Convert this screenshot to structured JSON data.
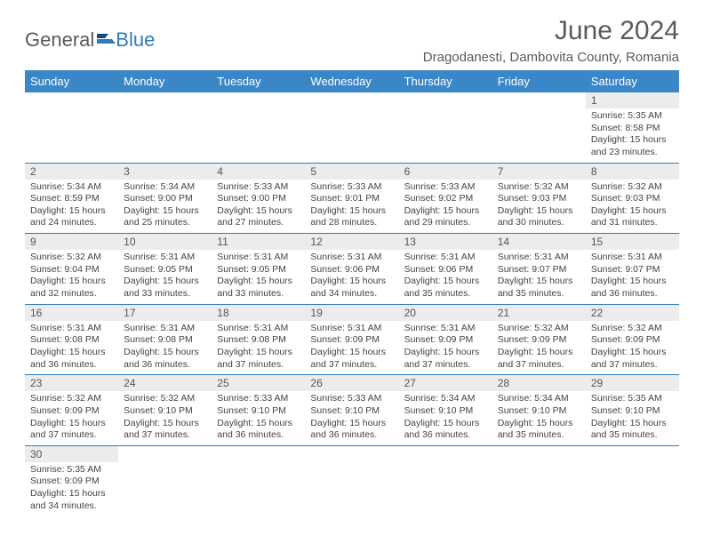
{
  "logo": {
    "word1": "General",
    "word2": "Blue"
  },
  "title": "June 2024",
  "location": "Dragodanesti, Dambovita County, Romania",
  "colors": {
    "headerBg": "#3a87c8",
    "headerText": "#ffffff",
    "dayNumBg": "#ececec",
    "rowBorder": "#2d7bc0",
    "textColor": "#444444",
    "titleColor": "#5a5a5a",
    "logoAccent": "#2d7bc0"
  },
  "dayNames": [
    "Sunday",
    "Monday",
    "Tuesday",
    "Wednesday",
    "Thursday",
    "Friday",
    "Saturday"
  ],
  "weeks": [
    [
      {
        "n": "",
        "sr": "",
        "ss": "",
        "dl": ""
      },
      {
        "n": "",
        "sr": "",
        "ss": "",
        "dl": ""
      },
      {
        "n": "",
        "sr": "",
        "ss": "",
        "dl": ""
      },
      {
        "n": "",
        "sr": "",
        "ss": "",
        "dl": ""
      },
      {
        "n": "",
        "sr": "",
        "ss": "",
        "dl": ""
      },
      {
        "n": "",
        "sr": "",
        "ss": "",
        "dl": ""
      },
      {
        "n": "1",
        "sr": "Sunrise: 5:35 AM",
        "ss": "Sunset: 8:58 PM",
        "dl": "Daylight: 15 hours and 23 minutes."
      }
    ],
    [
      {
        "n": "2",
        "sr": "Sunrise: 5:34 AM",
        "ss": "Sunset: 8:59 PM",
        "dl": "Daylight: 15 hours and 24 minutes."
      },
      {
        "n": "3",
        "sr": "Sunrise: 5:34 AM",
        "ss": "Sunset: 9:00 PM",
        "dl": "Daylight: 15 hours and 25 minutes."
      },
      {
        "n": "4",
        "sr": "Sunrise: 5:33 AM",
        "ss": "Sunset: 9:00 PM",
        "dl": "Daylight: 15 hours and 27 minutes."
      },
      {
        "n": "5",
        "sr": "Sunrise: 5:33 AM",
        "ss": "Sunset: 9:01 PM",
        "dl": "Daylight: 15 hours and 28 minutes."
      },
      {
        "n": "6",
        "sr": "Sunrise: 5:33 AM",
        "ss": "Sunset: 9:02 PM",
        "dl": "Daylight: 15 hours and 29 minutes."
      },
      {
        "n": "7",
        "sr": "Sunrise: 5:32 AM",
        "ss": "Sunset: 9:03 PM",
        "dl": "Daylight: 15 hours and 30 minutes."
      },
      {
        "n": "8",
        "sr": "Sunrise: 5:32 AM",
        "ss": "Sunset: 9:03 PM",
        "dl": "Daylight: 15 hours and 31 minutes."
      }
    ],
    [
      {
        "n": "9",
        "sr": "Sunrise: 5:32 AM",
        "ss": "Sunset: 9:04 PM",
        "dl": "Daylight: 15 hours and 32 minutes."
      },
      {
        "n": "10",
        "sr": "Sunrise: 5:31 AM",
        "ss": "Sunset: 9:05 PM",
        "dl": "Daylight: 15 hours and 33 minutes."
      },
      {
        "n": "11",
        "sr": "Sunrise: 5:31 AM",
        "ss": "Sunset: 9:05 PM",
        "dl": "Daylight: 15 hours and 33 minutes."
      },
      {
        "n": "12",
        "sr": "Sunrise: 5:31 AM",
        "ss": "Sunset: 9:06 PM",
        "dl": "Daylight: 15 hours and 34 minutes."
      },
      {
        "n": "13",
        "sr": "Sunrise: 5:31 AM",
        "ss": "Sunset: 9:06 PM",
        "dl": "Daylight: 15 hours and 35 minutes."
      },
      {
        "n": "14",
        "sr": "Sunrise: 5:31 AM",
        "ss": "Sunset: 9:07 PM",
        "dl": "Daylight: 15 hours and 35 minutes."
      },
      {
        "n": "15",
        "sr": "Sunrise: 5:31 AM",
        "ss": "Sunset: 9:07 PM",
        "dl": "Daylight: 15 hours and 36 minutes."
      }
    ],
    [
      {
        "n": "16",
        "sr": "Sunrise: 5:31 AM",
        "ss": "Sunset: 9:08 PM",
        "dl": "Daylight: 15 hours and 36 minutes."
      },
      {
        "n": "17",
        "sr": "Sunrise: 5:31 AM",
        "ss": "Sunset: 9:08 PM",
        "dl": "Daylight: 15 hours and 36 minutes."
      },
      {
        "n": "18",
        "sr": "Sunrise: 5:31 AM",
        "ss": "Sunset: 9:08 PM",
        "dl": "Daylight: 15 hours and 37 minutes."
      },
      {
        "n": "19",
        "sr": "Sunrise: 5:31 AM",
        "ss": "Sunset: 9:09 PM",
        "dl": "Daylight: 15 hours and 37 minutes."
      },
      {
        "n": "20",
        "sr": "Sunrise: 5:31 AM",
        "ss": "Sunset: 9:09 PM",
        "dl": "Daylight: 15 hours and 37 minutes."
      },
      {
        "n": "21",
        "sr": "Sunrise: 5:32 AM",
        "ss": "Sunset: 9:09 PM",
        "dl": "Daylight: 15 hours and 37 minutes."
      },
      {
        "n": "22",
        "sr": "Sunrise: 5:32 AM",
        "ss": "Sunset: 9:09 PM",
        "dl": "Daylight: 15 hours and 37 minutes."
      }
    ],
    [
      {
        "n": "23",
        "sr": "Sunrise: 5:32 AM",
        "ss": "Sunset: 9:09 PM",
        "dl": "Daylight: 15 hours and 37 minutes."
      },
      {
        "n": "24",
        "sr": "Sunrise: 5:32 AM",
        "ss": "Sunset: 9:10 PM",
        "dl": "Daylight: 15 hours and 37 minutes."
      },
      {
        "n": "25",
        "sr": "Sunrise: 5:33 AM",
        "ss": "Sunset: 9:10 PM",
        "dl": "Daylight: 15 hours and 36 minutes."
      },
      {
        "n": "26",
        "sr": "Sunrise: 5:33 AM",
        "ss": "Sunset: 9:10 PM",
        "dl": "Daylight: 15 hours and 36 minutes."
      },
      {
        "n": "27",
        "sr": "Sunrise: 5:34 AM",
        "ss": "Sunset: 9:10 PM",
        "dl": "Daylight: 15 hours and 36 minutes."
      },
      {
        "n": "28",
        "sr": "Sunrise: 5:34 AM",
        "ss": "Sunset: 9:10 PM",
        "dl": "Daylight: 15 hours and 35 minutes."
      },
      {
        "n": "29",
        "sr": "Sunrise: 5:35 AM",
        "ss": "Sunset: 9:10 PM",
        "dl": "Daylight: 15 hours and 35 minutes."
      }
    ],
    [
      {
        "n": "30",
        "sr": "Sunrise: 5:35 AM",
        "ss": "Sunset: 9:09 PM",
        "dl": "Daylight: 15 hours and 34 minutes."
      },
      {
        "n": "",
        "sr": "",
        "ss": "",
        "dl": ""
      },
      {
        "n": "",
        "sr": "",
        "ss": "",
        "dl": ""
      },
      {
        "n": "",
        "sr": "",
        "ss": "",
        "dl": ""
      },
      {
        "n": "",
        "sr": "",
        "ss": "",
        "dl": ""
      },
      {
        "n": "",
        "sr": "",
        "ss": "",
        "dl": ""
      },
      {
        "n": "",
        "sr": "",
        "ss": "",
        "dl": ""
      }
    ]
  ]
}
